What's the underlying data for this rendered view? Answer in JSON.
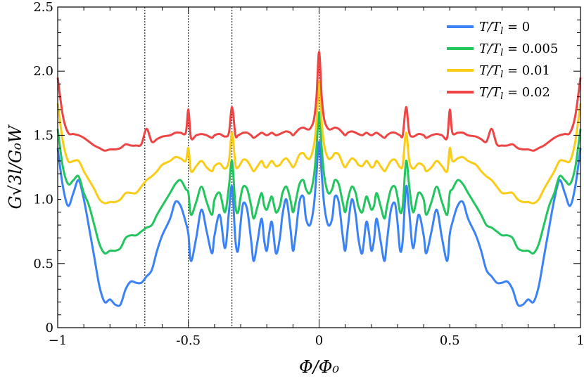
{
  "chart_data": {
    "type": "line",
    "xlabel": "Φ/Φ₀",
    "ylabel": "G√3l/G₀W",
    "xlim": [
      -1,
      1
    ],
    "ylim": [
      0,
      2.5
    ],
    "x_ticks": [
      -1,
      -0.5,
      0,
      0.5,
      1
    ],
    "x_tick_labels": [
      "−1",
      "-0.5",
      "0",
      "0.5",
      "1"
    ],
    "y_ticks": [
      0,
      0.5,
      1.0,
      1.5,
      2.0,
      2.5
    ],
    "y_tick_labels": [
      "0",
      "0.5",
      "1.0",
      "1.5",
      "2.0",
      "2.5"
    ],
    "vlines": [
      -0.6667,
      -0.5,
      -0.3333,
      0
    ],
    "legend_position": "top-right",
    "grid": false,
    "series": [
      {
        "name": "T/T_l = 0",
        "label_main": "T/T",
        "label_sub": "l",
        "label_value": " = 0",
        "color": "#3b82f6",
        "x": [
          0,
          0.01,
          0.02,
          0.035,
          0.05,
          0.06,
          0.075,
          0.09,
          0.1,
          0.11,
          0.125,
          0.14,
          0.15,
          0.165,
          0.18,
          0.19,
          0.2,
          0.21,
          0.22,
          0.235,
          0.25,
          0.26,
          0.275,
          0.29,
          0.3,
          0.31,
          0.32,
          0.333,
          0.345,
          0.36,
          0.38,
          0.4,
          0.41,
          0.43,
          0.45,
          0.47,
          0.49,
          0.5,
          0.51,
          0.53,
          0.55,
          0.57,
          0.6,
          0.62,
          0.64,
          0.66,
          0.68,
          0.7,
          0.72,
          0.74,
          0.76,
          0.78,
          0.8,
          0.82,
          0.84,
          0.86,
          0.88,
          0.9,
          0.92,
          0.94,
          0.96,
          0.98,
          1.0
        ],
        "values": [
          1.45,
          1.2,
          0.95,
          0.8,
          0.85,
          1.02,
          0.98,
          0.72,
          0.6,
          0.78,
          1.0,
          0.88,
          0.7,
          0.58,
          0.82,
          0.75,
          0.6,
          0.68,
          0.85,
          0.68,
          0.52,
          0.68,
          0.92,
          0.97,
          0.82,
          0.6,
          0.68,
          1.1,
          0.9,
          0.62,
          0.88,
          0.72,
          0.58,
          0.75,
          0.92,
          0.7,
          0.52,
          0.73,
          0.82,
          0.95,
          0.98,
          0.85,
          0.72,
          0.6,
          0.45,
          0.4,
          0.35,
          0.35,
          0.36,
          0.3,
          0.18,
          0.18,
          0.22,
          0.2,
          0.32,
          0.55,
          0.78,
          1.0,
          1.15,
          1.05,
          0.95,
          1.1,
          1.4
        ]
      },
      {
        "name": "T/T_l = 0.005",
        "label_main": "T/T",
        "label_sub": "l",
        "label_value": " = 0.005",
        "color": "#22c55e",
        "x": [
          0,
          0.01,
          0.02,
          0.035,
          0.05,
          0.06,
          0.075,
          0.09,
          0.1,
          0.11,
          0.125,
          0.14,
          0.15,
          0.165,
          0.18,
          0.19,
          0.2,
          0.21,
          0.22,
          0.235,
          0.25,
          0.26,
          0.275,
          0.29,
          0.3,
          0.31,
          0.32,
          0.333,
          0.345,
          0.36,
          0.38,
          0.4,
          0.41,
          0.43,
          0.45,
          0.47,
          0.49,
          0.5,
          0.51,
          0.53,
          0.55,
          0.57,
          0.6,
          0.62,
          0.64,
          0.66,
          0.68,
          0.7,
          0.72,
          0.74,
          0.76,
          0.78,
          0.8,
          0.82,
          0.84,
          0.86,
          0.88,
          0.9,
          0.92,
          0.94,
          0.96,
          0.98,
          1.0
        ],
        "values": [
          1.68,
          1.4,
          1.18,
          1.05,
          1.08,
          1.15,
          1.12,
          0.98,
          0.9,
          1.0,
          1.1,
          1.05,
          0.95,
          0.9,
          1.02,
          0.98,
          0.92,
          0.95,
          1.05,
          0.95,
          0.85,
          0.95,
          1.08,
          1.1,
          1.02,
          0.9,
          0.95,
          1.3,
          1.1,
          0.9,
          1.05,
          1.0,
          0.88,
          0.98,
          1.1,
          0.98,
          0.88,
          1.05,
          1.08,
          1.15,
          1.12,
          1.05,
          0.95,
          0.88,
          0.8,
          0.78,
          0.75,
          0.72,
          0.72,
          0.7,
          0.62,
          0.6,
          0.6,
          0.58,
          0.65,
          0.8,
          0.95,
          1.05,
          1.18,
          1.15,
          1.12,
          1.25,
          1.55
        ]
      },
      {
        "name": "T/T_l = 0.01",
        "label_main": "T/T",
        "label_sub": "l",
        "label_value": " = 0.01",
        "color": "#facc15",
        "x": [
          0,
          0.01,
          0.02,
          0.035,
          0.05,
          0.06,
          0.075,
          0.09,
          0.1,
          0.11,
          0.125,
          0.14,
          0.15,
          0.165,
          0.18,
          0.19,
          0.2,
          0.21,
          0.22,
          0.235,
          0.25,
          0.26,
          0.275,
          0.29,
          0.3,
          0.31,
          0.32,
          0.333,
          0.345,
          0.36,
          0.38,
          0.4,
          0.41,
          0.43,
          0.45,
          0.47,
          0.49,
          0.5,
          0.51,
          0.53,
          0.55,
          0.57,
          0.6,
          0.62,
          0.64,
          0.66,
          0.68,
          0.7,
          0.72,
          0.74,
          0.76,
          0.78,
          0.8,
          0.82,
          0.84,
          0.86,
          0.88,
          0.9,
          0.92,
          0.94,
          0.96,
          0.98,
          1.0
        ],
        "values": [
          1.92,
          1.6,
          1.42,
          1.32,
          1.33,
          1.36,
          1.35,
          1.28,
          1.25,
          1.28,
          1.32,
          1.3,
          1.27,
          1.26,
          1.3,
          1.28,
          1.25,
          1.26,
          1.3,
          1.26,
          1.22,
          1.25,
          1.3,
          1.31,
          1.28,
          1.25,
          1.27,
          1.52,
          1.3,
          1.24,
          1.28,
          1.26,
          1.22,
          1.25,
          1.3,
          1.26,
          1.22,
          1.4,
          1.3,
          1.32,
          1.33,
          1.3,
          1.27,
          1.22,
          1.18,
          1.15,
          1.1,
          1.05,
          1.05,
          1.05,
          1.0,
          0.98,
          0.98,
          0.97,
          1.0,
          1.08,
          1.15,
          1.22,
          1.3,
          1.3,
          1.3,
          1.45,
          1.75
        ]
      },
      {
        "name": "T/T_l = 0.02",
        "label_main": "T/T",
        "label_sub": "l",
        "label_value": " = 0.02",
        "color": "#ef4444",
        "x": [
          0,
          0.01,
          0.02,
          0.035,
          0.05,
          0.06,
          0.075,
          0.09,
          0.1,
          0.11,
          0.125,
          0.14,
          0.15,
          0.165,
          0.18,
          0.19,
          0.2,
          0.21,
          0.22,
          0.235,
          0.25,
          0.26,
          0.275,
          0.29,
          0.3,
          0.31,
          0.32,
          0.333,
          0.345,
          0.36,
          0.38,
          0.4,
          0.41,
          0.43,
          0.45,
          0.47,
          0.49,
          0.5,
          0.51,
          0.53,
          0.55,
          0.57,
          0.6,
          0.62,
          0.64,
          0.66,
          0.68,
          0.7,
          0.72,
          0.74,
          0.76,
          0.78,
          0.8,
          0.82,
          0.84,
          0.86,
          0.88,
          0.9,
          0.92,
          0.94,
          0.96,
          0.98,
          1.0
        ],
        "values": [
          2.15,
          1.8,
          1.62,
          1.55,
          1.55,
          1.56,
          1.55,
          1.52,
          1.5,
          1.52,
          1.53,
          1.52,
          1.51,
          1.5,
          1.52,
          1.51,
          1.5,
          1.51,
          1.52,
          1.5,
          1.48,
          1.5,
          1.52,
          1.52,
          1.51,
          1.5,
          1.5,
          1.72,
          1.52,
          1.49,
          1.51,
          1.5,
          1.48,
          1.5,
          1.51,
          1.5,
          1.48,
          1.7,
          1.52,
          1.52,
          1.52,
          1.5,
          1.49,
          1.47,
          1.45,
          1.55,
          1.43,
          1.42,
          1.42,
          1.43,
          1.4,
          1.39,
          1.39,
          1.38,
          1.4,
          1.42,
          1.45,
          1.48,
          1.5,
          1.51,
          1.52,
          1.65,
          1.95
        ]
      }
    ]
  }
}
